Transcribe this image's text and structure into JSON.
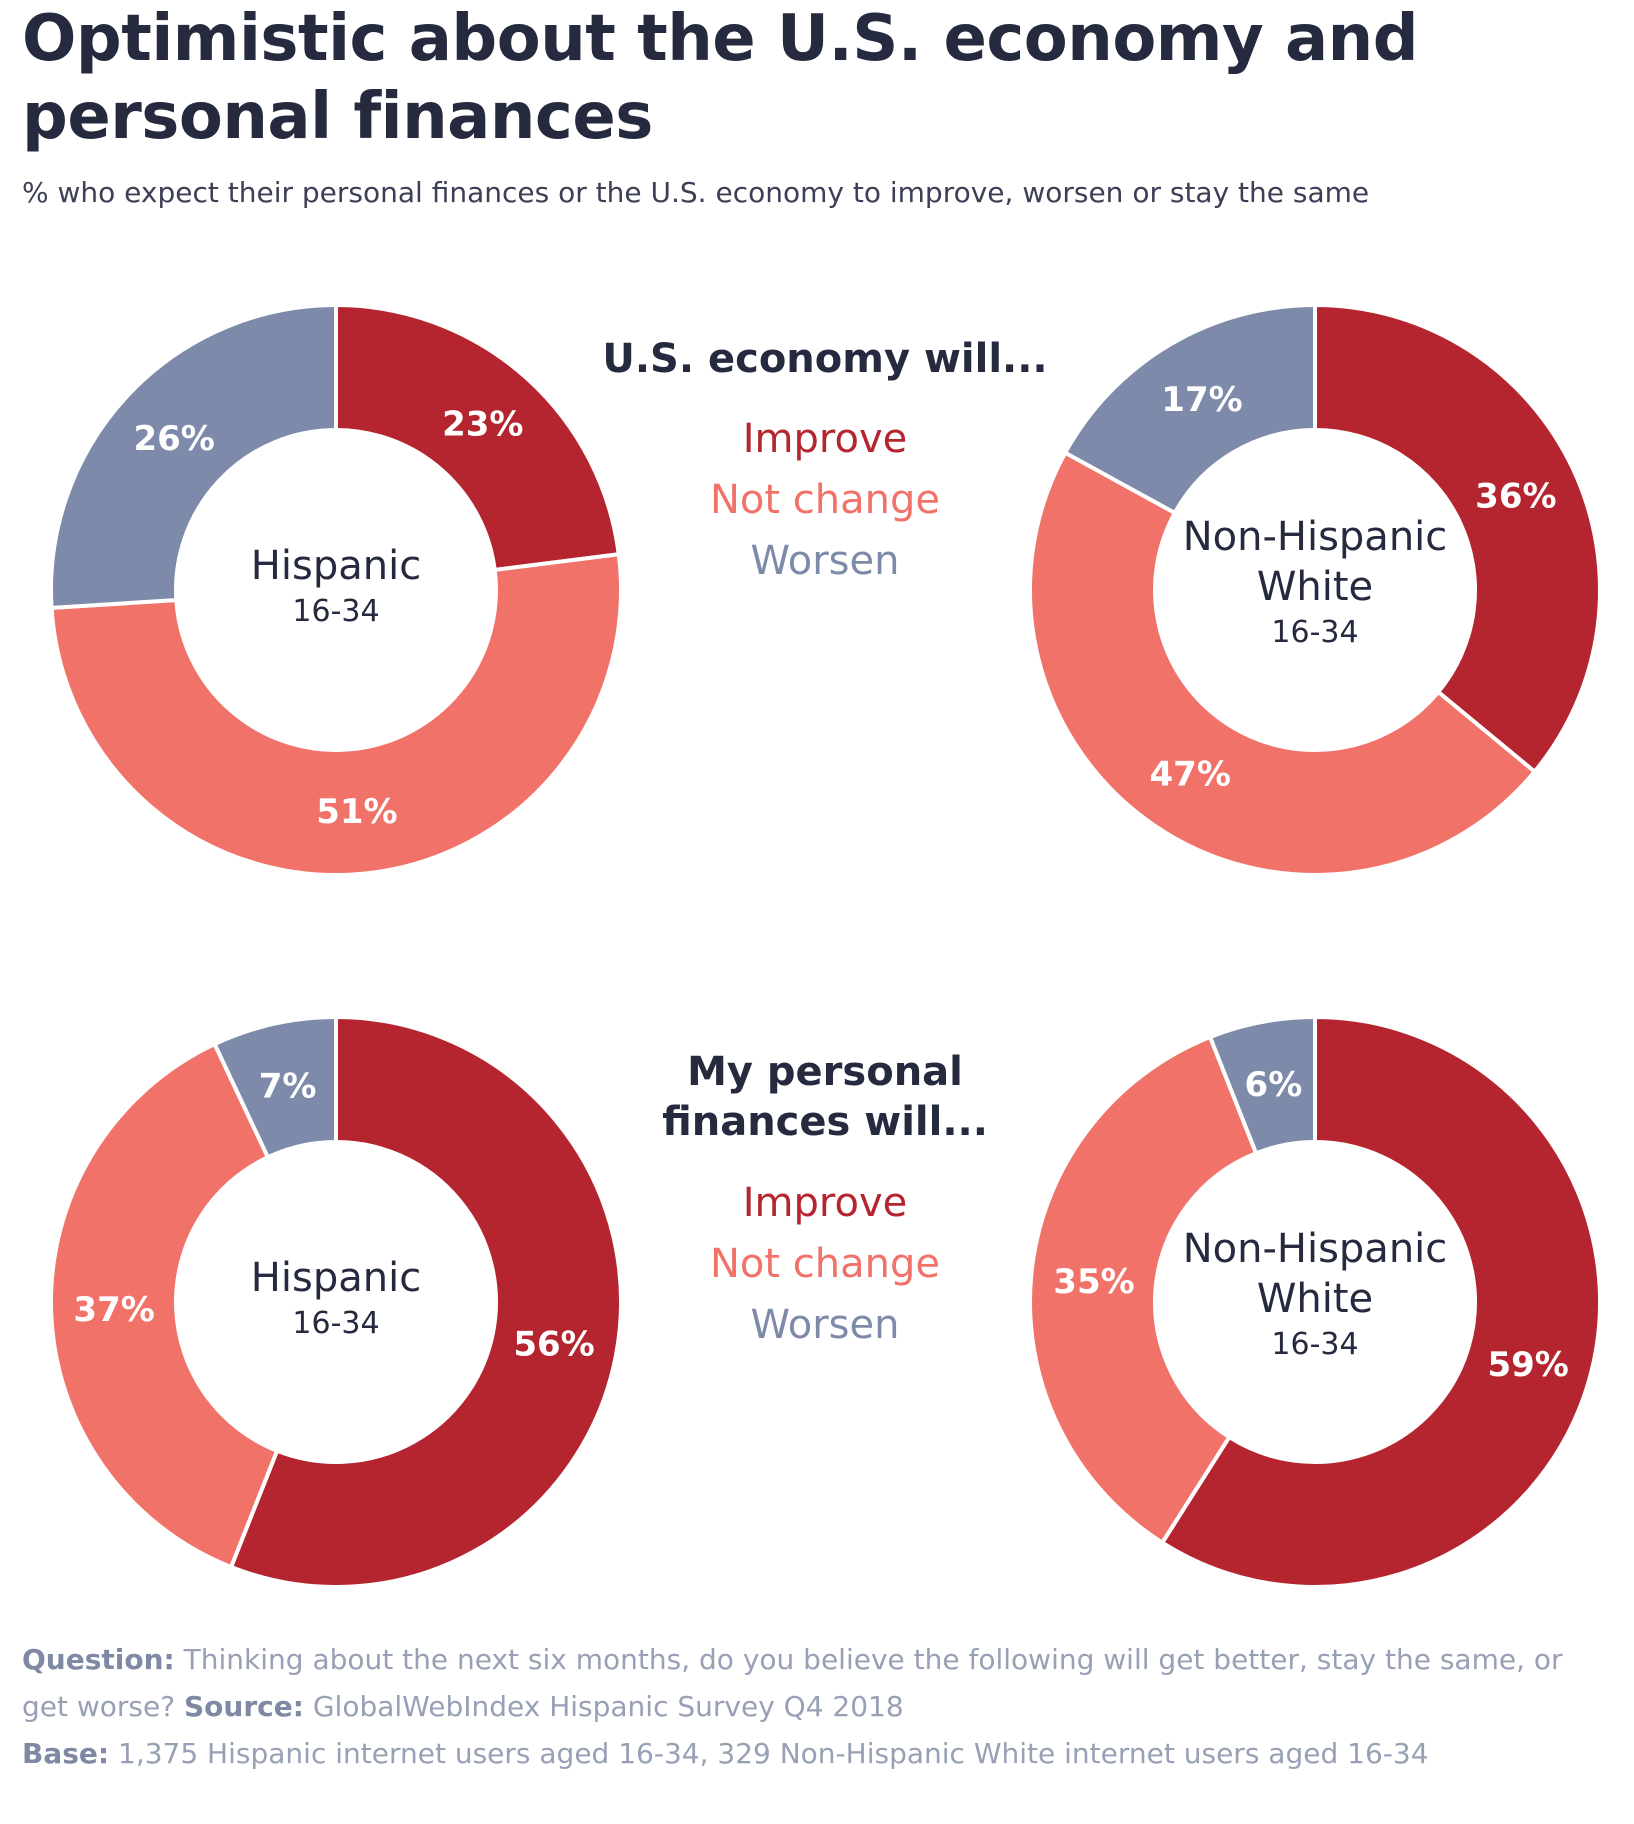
{
  "title": "Optimistic about the U.S. economy and personal finances",
  "subtitle": "% who expect their personal finances or the U.S. economy to improve, worsen or stay the same",
  "colors": {
    "Improve": "#b5252f",
    "Not change": "#f07269",
    "Worsen": "#7d8aa9",
    "text_dark": "#262a3f"
  },
  "chart_data": [
    {
      "type": "pie",
      "title": "U.S. economy will...",
      "center_label": [
        "Hispanic",
        "16-34"
      ],
      "categories": [
        "Improve",
        "Not change",
        "Worsen"
      ],
      "values": [
        23,
        51,
        26
      ],
      "data_labels": [
        "23%",
        "51%",
        "26%"
      ]
    },
    {
      "type": "pie",
      "title": "U.S. economy will...",
      "center_label": [
        "Non-Hispanic",
        "White",
        "16-34"
      ],
      "categories": [
        "Improve",
        "Not change",
        "Worsen"
      ],
      "values": [
        36,
        47,
        17
      ],
      "data_labels": [
        "36%",
        "47%",
        "17%"
      ]
    },
    {
      "type": "pie",
      "title": "My personal finances will...",
      "center_label": [
        "Hispanic",
        "16-34"
      ],
      "categories": [
        "Improve",
        "Not change",
        "Worsen"
      ],
      "values": [
        56,
        37,
        7
      ],
      "data_labels": [
        "56%",
        "37%",
        "7%"
      ]
    },
    {
      "type": "pie",
      "title": "My personal finances will...",
      "center_label": [
        "Non-Hispanic",
        "White",
        "16-34"
      ],
      "categories": [
        "Improve",
        "Not change",
        "Worsen"
      ],
      "values": [
        59,
        35,
        6
      ],
      "data_labels": [
        "59%",
        "35%",
        "6%"
      ]
    }
  ],
  "section_titles": [
    [
      "U.S. economy will..."
    ],
    [
      "My personal",
      "finances will..."
    ]
  ],
  "legend": [
    "Improve",
    "Not change",
    "Worsen"
  ],
  "footer": {
    "question_label": "Question:",
    "question_text": "Thinking about the next six months, do you believe the following will get better, stay the same, or get worse?",
    "source_label": "Source:",
    "source_text": "GlobalWebIndex Hispanic Survey Q4 2018",
    "base_label": "Base:",
    "base_text": "1,375 Hispanic internet users aged 16-34, 329 Non-Hispanic White internet users aged 16-34"
  }
}
